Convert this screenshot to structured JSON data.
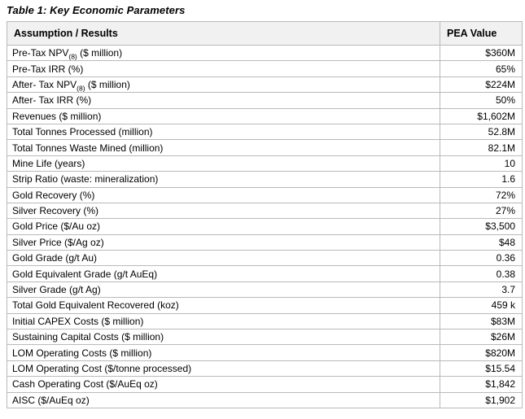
{
  "page_title": "Table 1: Key Economic Parameters",
  "table": {
    "columns": [
      "Assumption / Results",
      "PEA Value"
    ],
    "rows": [
      {
        "label": "Pre-Tax NPV",
        "sub": "(8)",
        "label_suffix": " ($ million)",
        "value": "$360M"
      },
      {
        "label": "Pre-Tax IRR (%)",
        "sub": "",
        "label_suffix": "",
        "value": "65%"
      },
      {
        "label": "After- Tax NPV",
        "sub": "(8)",
        "label_suffix": " ($ million)",
        "value": "$224M"
      },
      {
        "label": "After- Tax IRR (%)",
        "sub": "",
        "label_suffix": "",
        "value": "50%"
      },
      {
        "label": "Revenues ($ million)",
        "sub": "",
        "label_suffix": "",
        "value": "$1,602M"
      },
      {
        "label": "Total Tonnes Processed (million)",
        "sub": "",
        "label_suffix": "",
        "value": "52.8M"
      },
      {
        "label": "Total Tonnes Waste Mined (million)",
        "sub": "",
        "label_suffix": "",
        "value": "82.1M"
      },
      {
        "label": "Mine Life (years)",
        "sub": "",
        "label_suffix": "",
        "value": "10"
      },
      {
        "label": "Strip Ratio (waste: mineralization)",
        "sub": "",
        "label_suffix": "",
        "value": "1.6"
      },
      {
        "label": "Gold Recovery (%)",
        "sub": "",
        "label_suffix": "",
        "value": "72%"
      },
      {
        "label": "Silver Recovery (%)",
        "sub": "",
        "label_suffix": "",
        "value": "27%"
      },
      {
        "label": "Gold Price ($/Au oz)",
        "sub": "",
        "label_suffix": "",
        "value": "$3,500"
      },
      {
        "label": "Silver Price ($/Ag oz)",
        "sub": "",
        "label_suffix": "",
        "value": "$48"
      },
      {
        "label": "Gold Grade (g/t Au)",
        "sub": "",
        "label_suffix": "",
        "value": "0.36"
      },
      {
        "label": "Gold Equivalent Grade (g/t AuEq)",
        "sub": "",
        "label_suffix": "",
        "value": "0.38"
      },
      {
        "label": "Silver Grade (g/t Ag)",
        "sub": "",
        "label_suffix": "",
        "value": "3.7"
      },
      {
        "label": "Total Gold Equivalent Recovered (koz)",
        "sub": "",
        "label_suffix": "",
        "value": "459 k"
      },
      {
        "label": "Initial CAPEX Costs ($ million)",
        "sub": "",
        "label_suffix": "",
        "value": "$83M"
      },
      {
        "label": "Sustaining Capital Costs ($ million)",
        "sub": "",
        "label_suffix": "",
        "value": "$26M"
      },
      {
        "label": "LOM Operating Costs ($ million)",
        "sub": "",
        "label_suffix": "",
        "value": "$820M"
      },
      {
        "label": "LOM Operating Cost ($/tonne processed)",
        "sub": "",
        "label_suffix": "",
        "value": "$15.54"
      },
      {
        "label": "Cash Operating Cost ($/AuEq oz)",
        "sub": "",
        "label_suffix": "",
        "value": "$1,842"
      },
      {
        "label": "AISC ($/AuEq oz)",
        "sub": "",
        "label_suffix": "",
        "value": "$1,902"
      }
    ]
  },
  "colors": {
    "header_bg": "#f1f1f1",
    "border": "#b9b9b9",
    "text": "#000000"
  }
}
